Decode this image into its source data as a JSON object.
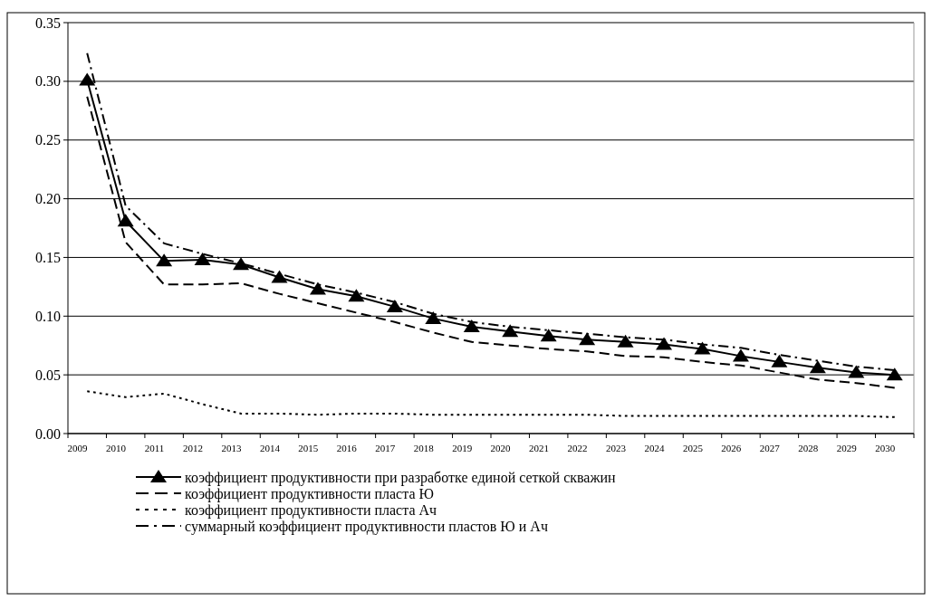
{
  "chart_data": {
    "type": "line",
    "categories": [
      "2009",
      "2010",
      "2011",
      "2012",
      "2013",
      "2014",
      "2015",
      "2016",
      "2017",
      "2018",
      "2019",
      "2020",
      "2021",
      "2022",
      "2023",
      "2024",
      "2025",
      "2026",
      "2027",
      "2028",
      "2029",
      "2030"
    ],
    "ylim": [
      0,
      0.35
    ],
    "yticks": [
      {
        "value": 0,
        "label": "0.00"
      },
      {
        "value": 0.05,
        "label": "0.05"
      },
      {
        "value": 0.1,
        "label": "0.10"
      },
      {
        "value": 0.15,
        "label": "0.15"
      },
      {
        "value": 0.2,
        "label": "0.20"
      },
      {
        "value": 0.25,
        "label": "0.25"
      },
      {
        "value": 0.3,
        "label": "0.30"
      },
      {
        "value": 0.35,
        "label": "0.35"
      }
    ],
    "grid": "y",
    "legend": "bottom",
    "series": [
      {
        "name": "коэффициент продуктивности при разработке единой сеткой скважин",
        "color": "#000000",
        "marker": "triangle",
        "line_style": "solid",
        "values": [
          0.301,
          0.181,
          0.147,
          0.148,
          0.144,
          0.133,
          0.123,
          0.117,
          0.108,
          0.098,
          0.091,
          0.087,
          0.083,
          0.08,
          0.078,
          0.076,
          0.072,
          0.066,
          0.061,
          0.056,
          0.052,
          0.05
        ]
      },
      {
        "name": "коэффициент продуктивности пласта Ю",
        "color": "#000000",
        "marker": "none",
        "line_style": "dashed",
        "values": [
          0.287,
          0.163,
          0.127,
          0.127,
          0.128,
          0.119,
          0.111,
          0.103,
          0.095,
          0.086,
          0.078,
          0.075,
          0.072,
          0.07,
          0.066,
          0.065,
          0.061,
          0.058,
          0.052,
          0.046,
          0.043,
          0.039
        ]
      },
      {
        "name": "коэффициент продуктивности пласта Ач",
        "color": "#000000",
        "marker": "none",
        "line_style": "dotted",
        "values": [
          0.036,
          0.031,
          0.034,
          0.025,
          0.017,
          0.017,
          0.016,
          0.017,
          0.017,
          0.016,
          0.016,
          0.016,
          0.016,
          0.016,
          0.015,
          0.015,
          0.015,
          0.015,
          0.015,
          0.015,
          0.015,
          0.014
        ]
      },
      {
        "name": "суммарный коэффициент продуктивности пластов Ю и Ач",
        "color": "#000000",
        "marker": "none",
        "line_style": "dashdot",
        "values": [
          0.324,
          0.194,
          0.162,
          0.153,
          0.145,
          0.136,
          0.127,
          0.12,
          0.112,
          0.102,
          0.095,
          0.091,
          0.088,
          0.085,
          0.082,
          0.08,
          0.076,
          0.073,
          0.067,
          0.062,
          0.057,
          0.054
        ]
      }
    ]
  }
}
